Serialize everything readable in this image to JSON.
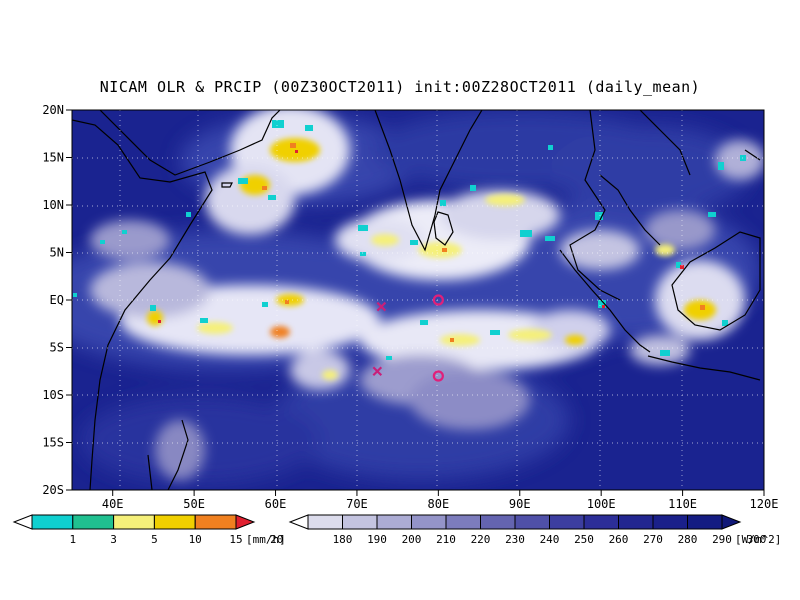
{
  "title": "NICAM OLR & PRCIP (00Z30OCT2011) init:00Z28OCT2011 (daily_mean)",
  "map": {
    "lon_range": [
      35,
      120
    ],
    "lat_range": [
      -20,
      20
    ],
    "x_ticks": [
      "40E",
      "50E",
      "60E",
      "70E",
      "80E",
      "90E",
      "100E",
      "110E",
      "120E"
    ],
    "y_ticks": [
      "20N",
      "15N",
      "10N",
      "5N",
      "EQ",
      "5S",
      "10S",
      "15S",
      "20S"
    ],
    "colors": {
      "ocean_dark": "#1a2390",
      "ocean_mid": "#3340a8",
      "cloud": "#ffffff",
      "coast": "#000000"
    }
  },
  "markers": [
    {
      "symbol": "x",
      "lon": 73,
      "lat": -0.7,
      "color": "#c8207a"
    },
    {
      "symbol": "x",
      "lon": 72.5,
      "lat": -7.5,
      "color": "#c8207a"
    },
    {
      "symbol": "o",
      "lon": 80,
      "lat": 0,
      "color": "#e0207a"
    },
    {
      "symbol": "o",
      "lon": 80,
      "lat": -8,
      "color": "#e0207a"
    }
  ],
  "precip_colorbar": {
    "unit": "[mm/h]",
    "labels": [
      "1",
      "3",
      "5",
      "10",
      "15",
      "20"
    ],
    "colors": [
      "#ffffff",
      "#10d0d0",
      "#20c090",
      "#f5f07a",
      "#f0d000",
      "#f08020",
      "#e02030"
    ]
  },
  "olr_colorbar": {
    "unit": "[W/m^2]",
    "labels": [
      "180",
      "190",
      "200",
      "210",
      "220",
      "230",
      "240",
      "250",
      "260",
      "270",
      "280",
      "290",
      "300"
    ],
    "colors": [
      "#ffffff",
      "#dcdcec",
      "#c4c4e0",
      "#acacd4",
      "#9494c8",
      "#7c7cbc",
      "#6464b0",
      "#4f50a8",
      "#3c3ea0",
      "#2c2e98",
      "#222690",
      "#1a208a",
      "#141c82",
      "#101878"
    ]
  }
}
